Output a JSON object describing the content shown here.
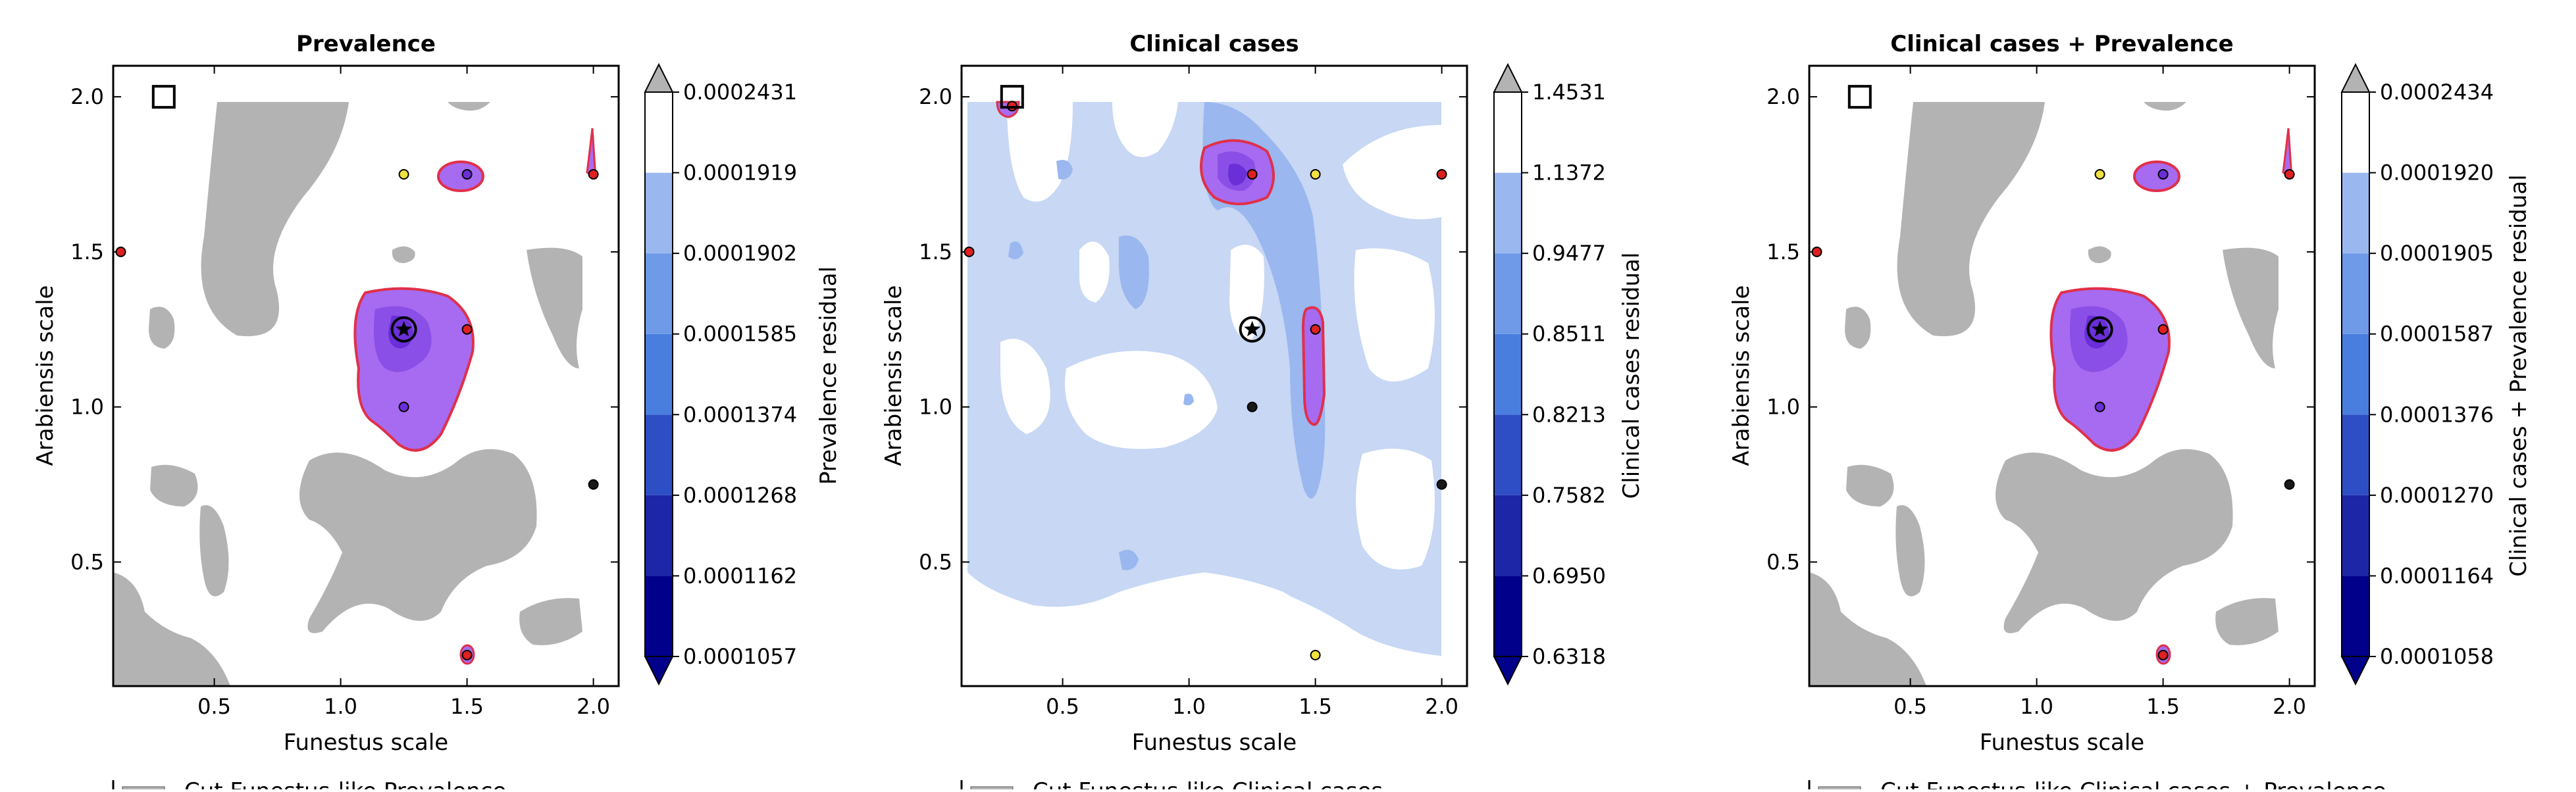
{
  "figure": {
    "legend_fragments": [
      "Cut Funestus-like Prevalence",
      "Cut Funestus-like Clinical cases",
      "Cut Funestus-like Clinical cases + Prevalence"
    ]
  },
  "colors": {
    "level_colors": [
      "#00008b",
      "#1c26a6",
      "#2d4ec4",
      "#4a7ede",
      "#6e9ae8",
      "#9ab7ef",
      "#c7d7f4",
      "#ffffff",
      "#b3b3b3"
    ],
    "purple_fill": "#a66bf0",
    "purple_mid": "#8a4fe6",
    "purple_dark": "#6a2fd8",
    "purple_edge": "#e0304a",
    "gray_region": "#b3b3b3",
    "marker_red": "#e02020",
    "marker_yellow": "#f0e040",
    "marker_black": "#1a1a1a"
  },
  "chart_data": [
    {
      "type": "contour",
      "title": "Prevalence",
      "xlabel": "Funestus scale",
      "ylabel": "Arabiensis scale",
      "xlim": [
        0.1,
        2.1
      ],
      "ylim": [
        0.1,
        2.1
      ],
      "xticks": [
        "0.5",
        "1.0",
        "1.5",
        "2.0"
      ],
      "yticks": [
        "0.5",
        "1.0",
        "1.5",
        "2.0"
      ],
      "colorbar_label": "Prevalence residual",
      "colorbar_ticks": [
        "0.0001057",
        "0.0001162",
        "0.0001268",
        "0.0001374",
        "0.0001585",
        "0.0001902",
        "0.0001919",
        "0.0002431"
      ],
      "best_point": {
        "x": 1.25,
        "y": 1.25,
        "marker": "star-in-circle"
      },
      "reference_point": {
        "x": 0.3,
        "y": 2.0,
        "marker": "square"
      },
      "points": [
        {
          "x": 0.13,
          "y": 1.5,
          "color": "red"
        },
        {
          "x": 1.25,
          "y": 1.75,
          "color": "yellow"
        },
        {
          "x": 1.5,
          "y": 1.75,
          "color": "purple"
        },
        {
          "x": 2.0,
          "y": 1.75,
          "color": "red"
        },
        {
          "x": 1.5,
          "y": 1.25,
          "color": "red"
        },
        {
          "x": 1.25,
          "y": 1.0,
          "color": "purple"
        },
        {
          "x": 2.0,
          "y": 0.75,
          "color": "black"
        },
        {
          "x": 1.5,
          "y": 0.2,
          "color": "red"
        }
      ],
      "regions": {
        "purple_blob": {
          "cx": 1.25,
          "cy": 1.22
        },
        "purple_small": {
          "cx": 1.5,
          "cy": 1.75
        }
      }
    },
    {
      "type": "contour",
      "title": "Clinical cases",
      "xlabel": "Funestus scale",
      "ylabel": "Arabiensis scale",
      "xlim": [
        0.1,
        2.1
      ],
      "ylim": [
        0.1,
        2.1
      ],
      "xticks": [
        "0.5",
        "1.0",
        "1.5",
        "2.0"
      ],
      "yticks": [
        "0.5",
        "1.0",
        "1.5",
        "2.0"
      ],
      "colorbar_label": "Clinical cases residual",
      "colorbar_ticks": [
        "0.6318",
        "0.6950",
        "0.7582",
        "0.8213",
        "0.8511",
        "0.9477",
        "1.1372",
        "1.4531"
      ],
      "best_point": {
        "x": 1.25,
        "y": 1.25,
        "marker": "star-in-circle"
      },
      "reference_point": {
        "x": 0.3,
        "y": 2.0,
        "marker": "square"
      },
      "points": [
        {
          "x": 0.3,
          "y": 1.97,
          "color": "red"
        },
        {
          "x": 0.13,
          "y": 1.5,
          "color": "red"
        },
        {
          "x": 1.25,
          "y": 1.75,
          "color": "red"
        },
        {
          "x": 1.5,
          "y": 1.75,
          "color": "yellow"
        },
        {
          "x": 2.0,
          "y": 1.75,
          "color": "red"
        },
        {
          "x": 1.5,
          "y": 1.25,
          "color": "red"
        },
        {
          "x": 1.25,
          "y": 1.0,
          "color": "black"
        },
        {
          "x": 2.0,
          "y": 0.75,
          "color": "black"
        },
        {
          "x": 1.5,
          "y": 0.2,
          "color": "yellow"
        }
      ]
    },
    {
      "type": "contour",
      "title": "Clinical cases + Prevalence",
      "xlabel": "Funestus scale",
      "ylabel": "Arabiensis scale",
      "xlim": [
        0.1,
        2.1
      ],
      "ylim": [
        0.1,
        2.1
      ],
      "xticks": [
        "0.5",
        "1.0",
        "1.5",
        "2.0"
      ],
      "yticks": [
        "0.5",
        "1.0",
        "1.5",
        "2.0"
      ],
      "colorbar_label": "Clinical cases + Prevalence residual",
      "colorbar_ticks": [
        "0.0001058",
        "0.0001164",
        "0.0001270",
        "0.0001376",
        "0.0001587",
        "0.0001905",
        "0.0001920",
        "0.0002434"
      ],
      "best_point": {
        "x": 1.25,
        "y": 1.25,
        "marker": "star-in-circle"
      },
      "reference_point": {
        "x": 0.3,
        "y": 2.0,
        "marker": "square"
      },
      "points": [
        {
          "x": 0.13,
          "y": 1.5,
          "color": "red"
        },
        {
          "x": 1.25,
          "y": 1.75,
          "color": "yellow"
        },
        {
          "x": 1.5,
          "y": 1.75,
          "color": "purple"
        },
        {
          "x": 2.0,
          "y": 1.75,
          "color": "red"
        },
        {
          "x": 1.5,
          "y": 1.25,
          "color": "red"
        },
        {
          "x": 1.25,
          "y": 1.0,
          "color": "purple"
        },
        {
          "x": 2.0,
          "y": 0.75,
          "color": "black"
        },
        {
          "x": 1.5,
          "y": 0.2,
          "color": "red"
        }
      ]
    }
  ]
}
